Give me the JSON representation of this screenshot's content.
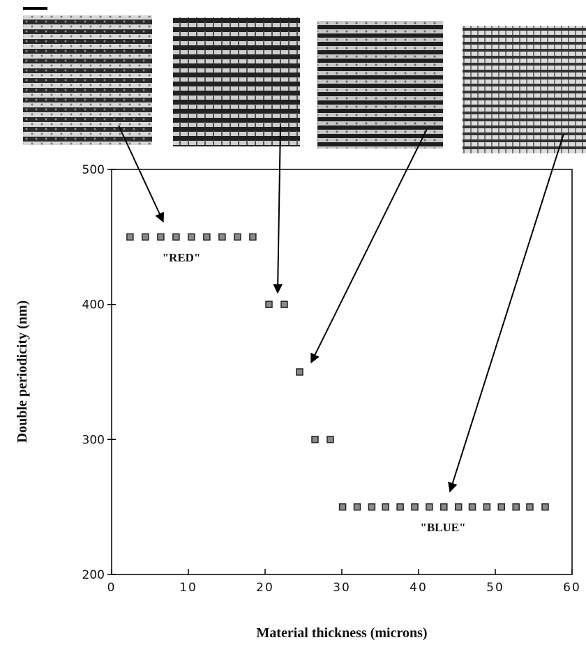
{
  "chart_data": {
    "type": "scatter",
    "x_label": "Material  thickness  (microns)",
    "y_label": "Double  periodicity  (nm)",
    "x": [
      2.4,
      4.4,
      6.4,
      8.4,
      10.4,
      12.4,
      14.4,
      16.4,
      18.4,
      20.5,
      22.5,
      24.5,
      26.5,
      28.5,
      30.1,
      32,
      33.9,
      35.7,
      37.6,
      39.5,
      41.4,
      43.3,
      45.2,
      47,
      48.9,
      50.8,
      52.7,
      54.5,
      56.5
    ],
    "y": [
      450,
      450,
      450,
      450,
      450,
      450,
      450,
      450,
      450,
      400,
      400,
      350,
      300,
      300,
      250,
      250,
      250,
      250,
      250,
      250,
      250,
      250,
      250,
      250,
      250,
      250,
      250,
      250,
      250
    ],
    "color": "#8a8a8a",
    "xlim": [
      0,
      60
    ],
    "xticks": [
      0,
      10,
      20,
      30,
      40,
      50,
      60
    ],
    "ylim": [
      200,
      500
    ],
    "yticks": [
      200,
      300,
      400,
      500
    ],
    "annotations": [
      "\"RED\"",
      "\"BLUE\""
    ]
  }
}
